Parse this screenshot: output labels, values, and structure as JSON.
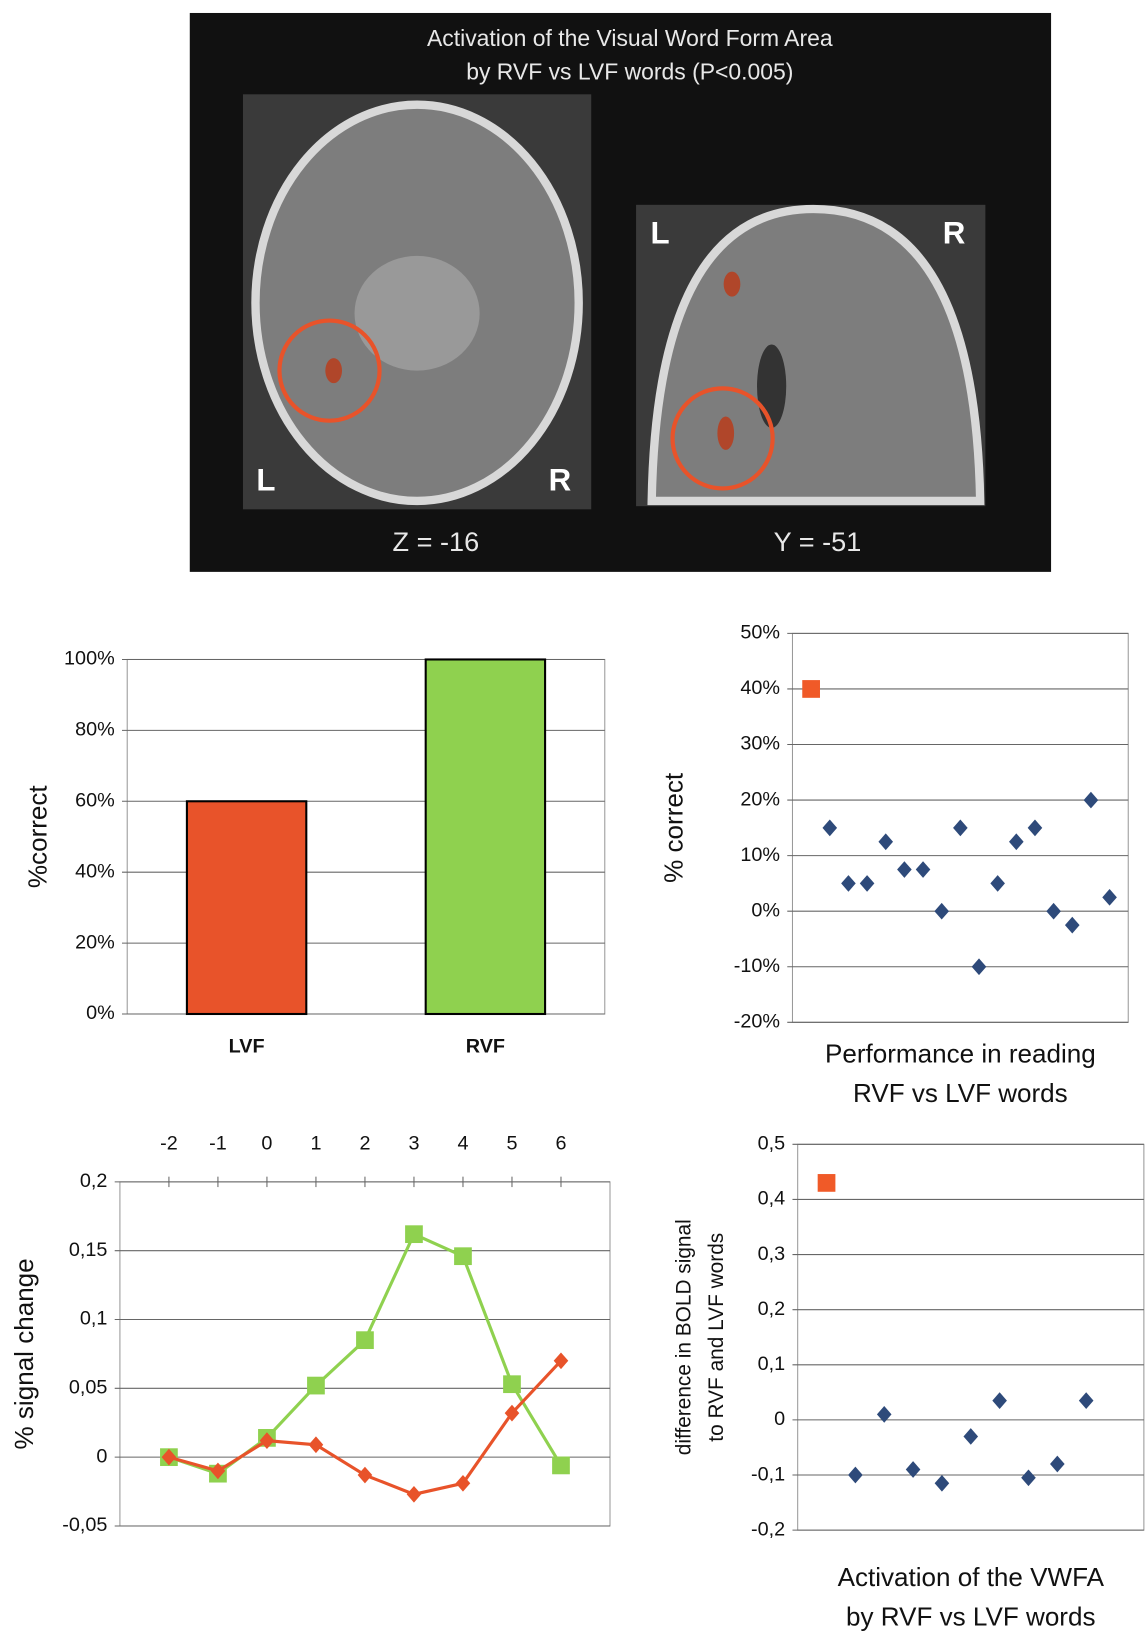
{
  "figure": {
    "title": [
      "Activation of the Visual Word Form Area",
      "by RVF vs LVF words (P<0.005)"
    ],
    "left_image": {
      "left": "L",
      "right": "R",
      "caption": "Z = -16"
    },
    "right_image": {
      "left": "L",
      "right": "R",
      "caption": "Y = -51"
    }
  },
  "chart_data": [
    {
      "type": "bar",
      "categories": [
        "LVF",
        "RVF"
      ],
      "values": [
        60,
        100
      ],
      "colors": [
        "#e8532a",
        "#8fd14f"
      ],
      "ylabel": [
        "%correct"
      ],
      "ylim": [
        0,
        100
      ],
      "yticks": [
        {
          "value": 0,
          "label": "0%"
        },
        {
          "value": 20,
          "label": "20%"
        },
        {
          "value": 40,
          "label": "40%"
        },
        {
          "value": 60,
          "label": "60%"
        },
        {
          "value": 80,
          "label": "80%"
        },
        {
          "value": 100,
          "label": "100%"
        }
      ],
      "grid": true
    },
    {
      "type": "scatter",
      "ylabel": [
        "% correct"
      ],
      "xlabel": [
        "Performance in  reading",
        "RVF vs LVF words"
      ],
      "series": [
        {
          "color": "#f05a28",
          "marker": "square",
          "x": [
            1
          ],
          "values": [
            40
          ]
        },
        {
          "color": "#2e4a7a",
          "marker": "diamond",
          "x": [
            2,
            3,
            4,
            5,
            6,
            7,
            8,
            9,
            10,
            11,
            12,
            13,
            14,
            15,
            16,
            17
          ],
          "values": [
            15,
            5,
            5,
            12.5,
            7.5,
            7.5,
            0,
            15,
            -10,
            5,
            12.5,
            15,
            0,
            -2.5,
            20,
            2.5
          ]
        }
      ],
      "xlim": [
        0,
        18
      ],
      "ylim": [
        -20,
        50
      ],
      "yticks": [
        {
          "value": -20,
          "label": "-20%"
        },
        {
          "value": -10,
          "label": "-10%"
        },
        {
          "value": 0,
          "label": "0%"
        },
        {
          "value": 10,
          "label": "10%"
        },
        {
          "value": 20,
          "label": "20%"
        },
        {
          "value": 30,
          "label": "30%"
        },
        {
          "value": 40,
          "label": "40%"
        },
        {
          "value": 50,
          "label": "50%"
        }
      ],
      "grid": true
    },
    {
      "type": "line",
      "ylabel": [
        "% signal change"
      ],
      "x": [
        -2,
        -1,
        0,
        1,
        2,
        3,
        4,
        5,
        6
      ],
      "series": [
        {
          "color": "#8fd14f",
          "marker": "square",
          "values": [
            0,
            -0.012,
            0.014,
            0.052,
            0.085,
            0.162,
            0.146,
            0.053,
            -0.006
          ]
        },
        {
          "color": "#e8532a",
          "marker": "diamond",
          "values": [
            0,
            -0.01,
            0.012,
            0.009,
            -0.013,
            -0.027,
            -0.019,
            0.032,
            0.07
          ]
        }
      ],
      "xlim": [
        -3,
        7
      ],
      "xticks": [
        -2,
        -1,
        0,
        1,
        2,
        3,
        4,
        5,
        6
      ],
      "xtick_side": "top",
      "ylim": [
        -0.05,
        0.2
      ],
      "yticks": [
        {
          "value": -0.05,
          "label": "-0,05"
        },
        {
          "value": 0,
          "label": "0"
        },
        {
          "value": 0.05,
          "label": "0,05"
        },
        {
          "value": 0.1,
          "label": "0,1"
        },
        {
          "value": 0.15,
          "label": "0,15"
        },
        {
          "value": 0.2,
          "label": "0,2"
        }
      ],
      "grid": true
    },
    {
      "type": "scatter",
      "ylabel": [
        "difference in BOLD signal",
        "to RVF and LVF words"
      ],
      "xlabel": [
        "Activation of the VWFA",
        "by RVF vs LVF words"
      ],
      "series": [
        {
          "color": "#f05a28",
          "marker": "square",
          "x": [
            1
          ],
          "values": [
            0.43
          ]
        },
        {
          "color": "#2e4a7a",
          "marker": "diamond",
          "x": [
            2,
            3,
            4,
            5,
            6,
            7,
            8,
            9,
            10
          ],
          "values": [
            -0.1,
            0.01,
            -0.09,
            -0.115,
            -0.03,
            0.035,
            -0.105,
            -0.08,
            0.035
          ]
        }
      ],
      "xlim": [
        0,
        12
      ],
      "ylim": [
        -0.2,
        0.5
      ],
      "yticks": [
        {
          "value": -0.2,
          "label": "-0,2"
        },
        {
          "value": -0.1,
          "label": "-0,1"
        },
        {
          "value": 0,
          "label": "0"
        },
        {
          "value": 0.1,
          "label": "0,1"
        },
        {
          "value": 0.2,
          "label": "0,2"
        },
        {
          "value": 0.3,
          "label": "0,3"
        },
        {
          "value": 0.4,
          "label": "0,4"
        },
        {
          "value": 0.5,
          "label": "0,5"
        }
      ],
      "grid": true
    }
  ]
}
